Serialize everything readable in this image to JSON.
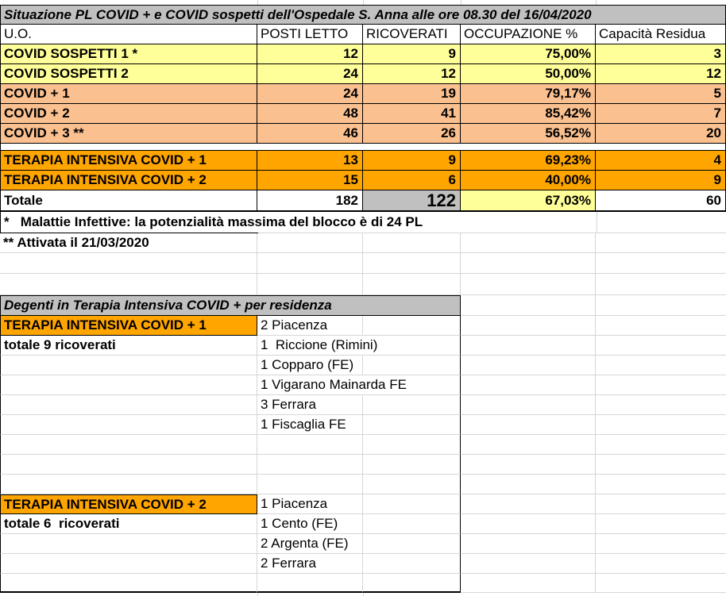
{
  "title": "Situazione PL COVID + e COVID sospetti dell'Ospedale S. Anna alle ore 08.30 del 16/04/2020",
  "table1": {
    "headers": [
      "U.O.",
      "POSTI LETTO",
      "RICOVERATI",
      "OCCUPAZIONE %",
      "Capacità Residua"
    ],
    "rows": [
      {
        "uo": "COVID SOSPETTI 1 *",
        "posti_letto": "12",
        "ricoverati": "9",
        "occupazione": "75,00%",
        "capacita_residua": "3"
      },
      {
        "uo": "COVID SOSPETTI 2",
        "posti_letto": "24",
        "ricoverati": "12",
        "occupazione": "50,00%",
        "capacita_residua": "12"
      },
      {
        "uo": "COVID + 1",
        "posti_letto": "24",
        "ricoverati": "19",
        "occupazione": "79,17%",
        "capacita_residua": "5"
      },
      {
        "uo": "COVID + 2",
        "posti_letto": "48",
        "ricoverati": "41",
        "occupazione": "85,42%",
        "capacita_residua": "7"
      },
      {
        "uo": "COVID + 3 **",
        "posti_letto": "46",
        "ricoverati": "26",
        "occupazione": "56,52%",
        "capacita_residua": "20"
      },
      {
        "uo": "TERAPIA INTENSIVA COVID + 1",
        "posti_letto": "13",
        "ricoverati": "9",
        "occupazione": "69,23%",
        "capacita_residua": "4"
      },
      {
        "uo": "TERAPIA INTENSIVA COVID + 2",
        "posti_letto": "15",
        "ricoverati": "6",
        "occupazione": "40,00%",
        "capacita_residua": "9"
      }
    ],
    "totale": {
      "uo": "Totale",
      "posti_letto": "182",
      "ricoverati": "122",
      "occupazione": "67,03%",
      "capacita_residua": "60"
    }
  },
  "notes": {
    "note1": "*   Malattie Infettive: la potenzialità massima del blocco è di 24 PL",
    "note2": "** Attivata il 21/03/2020"
  },
  "table2": {
    "title": "Degenti in Terapia Intensiva COVID + per residenza",
    "groups": [
      {
        "label": "TERAPIA INTENSIVA COVID + 1",
        "subtotal": "totale 9 ricoverati",
        "residences": [
          "2 Piacenza",
          "1  Riccione (Rimini)",
          "1 Copparo (FE)",
          "1 Vigarano Mainarda FE",
          "3 Ferrara",
          "1 Fiscaglia FE"
        ]
      },
      {
        "label": "TERAPIA INTENSIVA COVID + 2",
        "subtotal": "totale 6  ricoverati",
        "residences": [
          "1 Piacenza",
          "1 Cento (FE)",
          "2 Argenta (FE)",
          "2 Ferrara"
        ]
      }
    ]
  },
  "colors": {
    "title_gray": "#C0C0C0",
    "suspect_yellow": "#FFFF99",
    "covid_peach": "#FAC090",
    "intensive_orange": "#FFA500",
    "total_ricoverati_gray": "#C0C0C0",
    "total_occupazione_yellow": "#FFFF99",
    "grid_line": "#D6D6D6",
    "border_black": "#000000"
  }
}
